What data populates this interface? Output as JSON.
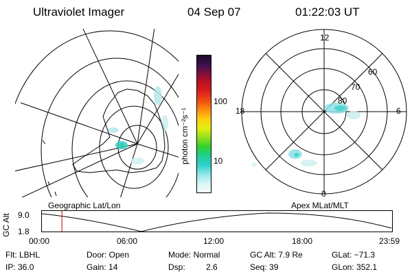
{
  "header": {
    "instrument": "Ultraviolet Imager",
    "date": "04 Sep 07",
    "time": "01:22:03 UT"
  },
  "colorbar": {
    "label": "photon cm⁻²s⁻¹",
    "ticks": [
      {
        "value": 100,
        "label": "100"
      },
      {
        "value": 10,
        "label": "10"
      }
    ],
    "colors": [
      "#1a0a2a",
      "#3a1050",
      "#80103a",
      "#c01020",
      "#e02020",
      "#f05010",
      "#ff9010",
      "#ffd010",
      "#e0f010",
      "#90e020",
      "#30d030",
      "#20d090",
      "#30d0d0",
      "#90e8e8",
      "#d8f4f4",
      "#f4fbfb"
    ]
  },
  "left_map": {
    "label": "Geographic Lat/Lon"
  },
  "right_map": {
    "label": "Apex MLat/MLT",
    "mlt_labels": [
      "12",
      "18",
      "6",
      "0"
    ],
    "lat_labels": [
      "60",
      "70",
      "80"
    ]
  },
  "altitude_plot": {
    "ylabel": "GC Alt",
    "yticks": [
      "9.0",
      "1.8"
    ],
    "xticks": [
      "00:00",
      "06:00",
      "12:00",
      "18:00",
      "23:59"
    ],
    "current_time_hours": 1.37
  },
  "info": {
    "filter": "Flt: LBHL",
    "ip": "IP: 36.0",
    "door": "Door: Open",
    "gain": "Gain: 14",
    "mode": "Mode: Normal",
    "dsp_label": "Dsp:",
    "dsp_value": "2.6",
    "gc_alt": "GC Alt: 7.9 Re",
    "seq": "Seq: 39",
    "glat": "GLat: −71.3",
    "glon": "GLon: 352.1"
  }
}
